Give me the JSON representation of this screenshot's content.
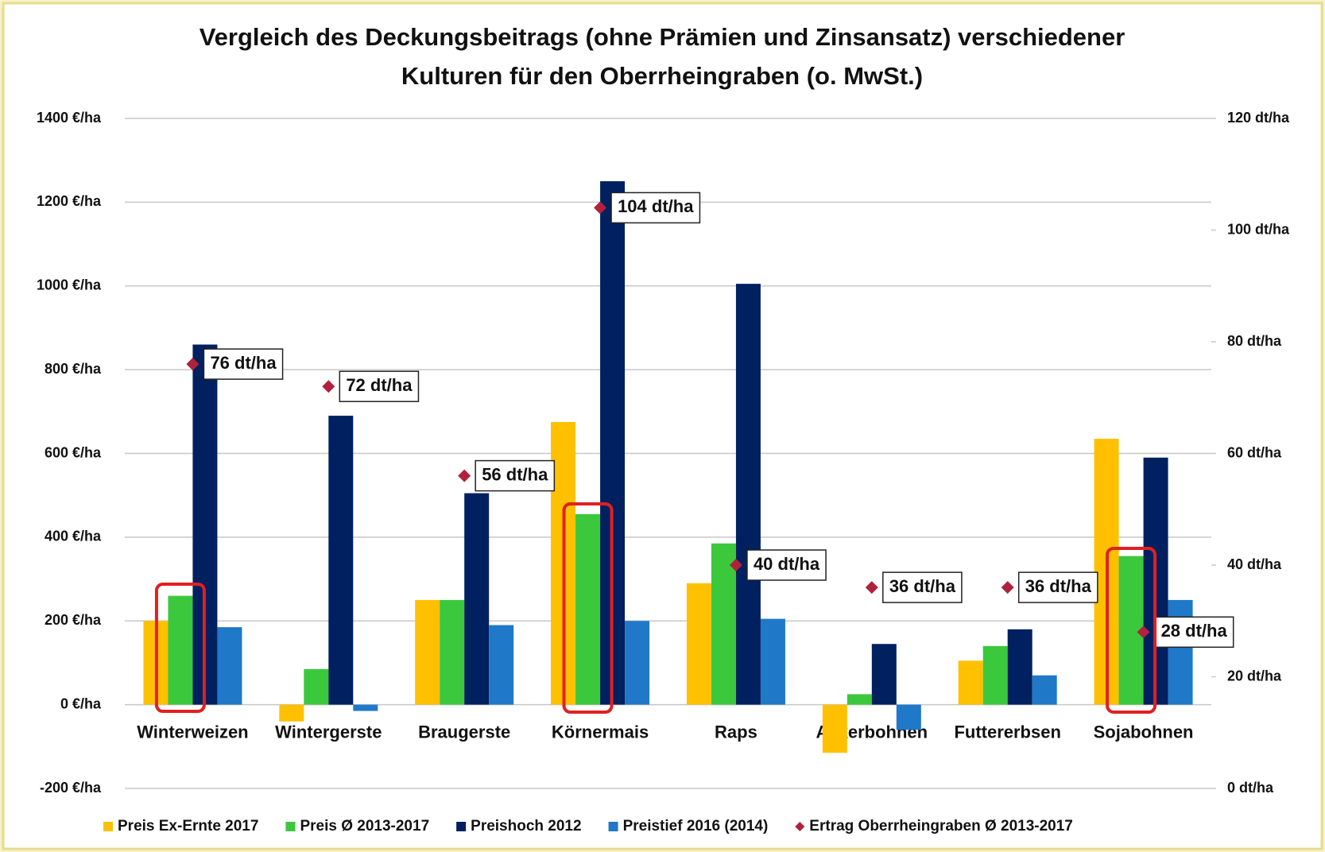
{
  "chart_data": {
    "type": "bar",
    "title": [
      "Vergleich des Deckungsbeitrags (ohne Prämien und Zinsansatz) verschiedener",
      "Kulturen für den Oberrheingraben (o. MwSt.)"
    ],
    "categories": [
      "Winterweizen",
      "Wintergerste",
      "Braugerste",
      "Körnermais",
      "Raps",
      "Ackerbohnen",
      "Futtererbsen",
      "Sojabohnen"
    ],
    "series": [
      {
        "name": "Preis Ex-Ernte 2017",
        "color": "#FFC000",
        "values": [
          200,
          -40,
          250,
          675,
          290,
          -115,
          105,
          635
        ]
      },
      {
        "name": "Preis Ø 2013-2017",
        "color": "#3CC83C",
        "values": [
          260,
          85,
          250,
          455,
          385,
          25,
          140,
          355
        ]
      },
      {
        "name": "Preishoch 2012",
        "color": "#002060",
        "values": [
          860,
          690,
          505,
          1250,
          1005,
          145,
          180,
          590
        ]
      },
      {
        "name": "Preistief 2016 (2014)",
        "color": "#1F78C8",
        "values": [
          185,
          -15,
          190,
          200,
          205,
          -60,
          70,
          250
        ]
      },
      {
        "name": "Ertrag Oberrheingraben Ø 2013-2017",
        "color": "#B0223C",
        "axis": "y2",
        "type": "scatter",
        "values": [
          76,
          72,
          56,
          104,
          40,
          36,
          36,
          28
        ],
        "value_labels": [
          "76 dt/ha",
          "72 dt/ha",
          "56 dt/ha",
          "104 dt/ha",
          "40 dt/ha",
          "36 dt/ha",
          "36 dt/ha",
          "28 dt/ha"
        ]
      }
    ],
    "ylim": [
      -200,
      1400
    ],
    "yticks": [
      {
        "value": -200,
        "label": "-200 €/ha"
      },
      {
        "value": 0,
        "label": "0 €/ha"
      },
      {
        "value": 200,
        "label": "200 €/ha"
      },
      {
        "value": 400,
        "label": "400 €/ha"
      },
      {
        "value": 600,
        "label": "600 €/ha"
      },
      {
        "value": 800,
        "label": "800 €/ha"
      },
      {
        "value": 1000,
        "label": "1000 €/ha"
      },
      {
        "value": 1200,
        "label": "1200 €/ha"
      },
      {
        "value": 1400,
        "label": "1400 €/ha"
      }
    ],
    "y2lim": [
      0,
      120
    ],
    "y2ticks": [
      {
        "value": 0,
        "label": "0 dt/ha"
      },
      {
        "value": 20,
        "label": "20 dt/ha"
      },
      {
        "value": 40,
        "label": "40 dt/ha"
      },
      {
        "value": 60,
        "label": "60 dt/ha"
      },
      {
        "value": 80,
        "label": "80 dt/ha"
      },
      {
        "value": 100,
        "label": "100 dt/ha"
      },
      {
        "value": 120,
        "label": "120 dt/ha"
      }
    ],
    "grid": true,
    "legend": "bottom"
  }
}
